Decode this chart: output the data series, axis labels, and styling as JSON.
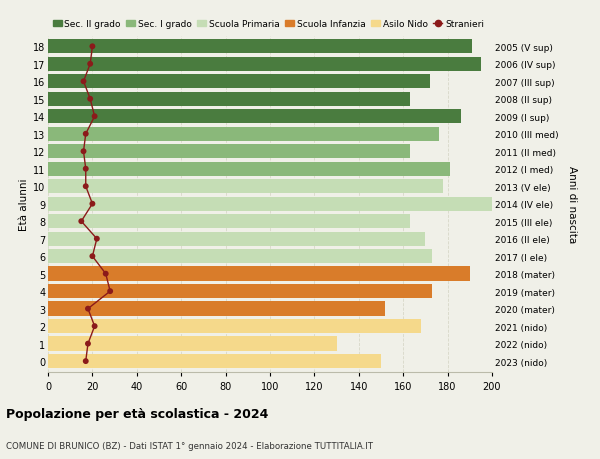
{
  "ages": [
    18,
    17,
    16,
    15,
    14,
    13,
    12,
    11,
    10,
    9,
    8,
    7,
    6,
    5,
    4,
    3,
    2,
    1,
    0
  ],
  "years_labels": [
    "2005 (V sup)",
    "2006 (IV sup)",
    "2007 (III sup)",
    "2008 (II sup)",
    "2009 (I sup)",
    "2010 (III med)",
    "2011 (II med)",
    "2012 (I med)",
    "2013 (V ele)",
    "2014 (IV ele)",
    "2015 (III ele)",
    "2016 (II ele)",
    "2017 (I ele)",
    "2018 (mater)",
    "2019 (mater)",
    "2020 (mater)",
    "2021 (nido)",
    "2022 (nido)",
    "2023 (nido)"
  ],
  "bar_values": [
    191,
    195,
    172,
    163,
    186,
    176,
    163,
    181,
    178,
    200,
    163,
    170,
    173,
    190,
    173,
    152,
    168,
    130,
    150
  ],
  "stranieri_values": [
    20,
    19,
    16,
    19,
    21,
    17,
    16,
    17,
    17,
    20,
    15,
    22,
    20,
    26,
    28,
    18,
    21,
    18,
    17
  ],
  "color_map": [
    "#4a7c3f",
    "#4a7c3f",
    "#4a7c3f",
    "#4a7c3f",
    "#4a7c3f",
    "#8ab87a",
    "#8ab87a",
    "#8ab87a",
    "#c5ddb5",
    "#c5ddb5",
    "#c5ddb5",
    "#c5ddb5",
    "#c5ddb5",
    "#d97c2a",
    "#d97c2a",
    "#d97c2a",
    "#f5d98b",
    "#f5d98b",
    "#f5d98b"
  ],
  "stranieri_color": "#8b1a1a",
  "bg_color": "#f0f0e8",
  "grid_color": "#d8d8c8",
  "title": "Popolazione per età scolastica - 2024",
  "subtitle": "COMUNE DI BRUNICO (BZ) - Dati ISTAT 1° gennaio 2024 - Elaborazione TUTTITALIA.IT",
  "ylabel": "Età alunni",
  "ylabel2": "Anni di nascita",
  "xlim": [
    0,
    200
  ],
  "xticks": [
    0,
    20,
    40,
    60,
    80,
    100,
    120,
    140,
    160,
    180,
    200
  ],
  "legend_labels": [
    "Sec. II grado",
    "Sec. I grado",
    "Scuola Primaria",
    "Scuola Infanzia",
    "Asilo Nido",
    "Stranieri"
  ],
  "legend_colors": [
    "#4a7c3f",
    "#8ab87a",
    "#c5ddb5",
    "#d97c2a",
    "#f5d98b",
    "#8b1a1a"
  ]
}
